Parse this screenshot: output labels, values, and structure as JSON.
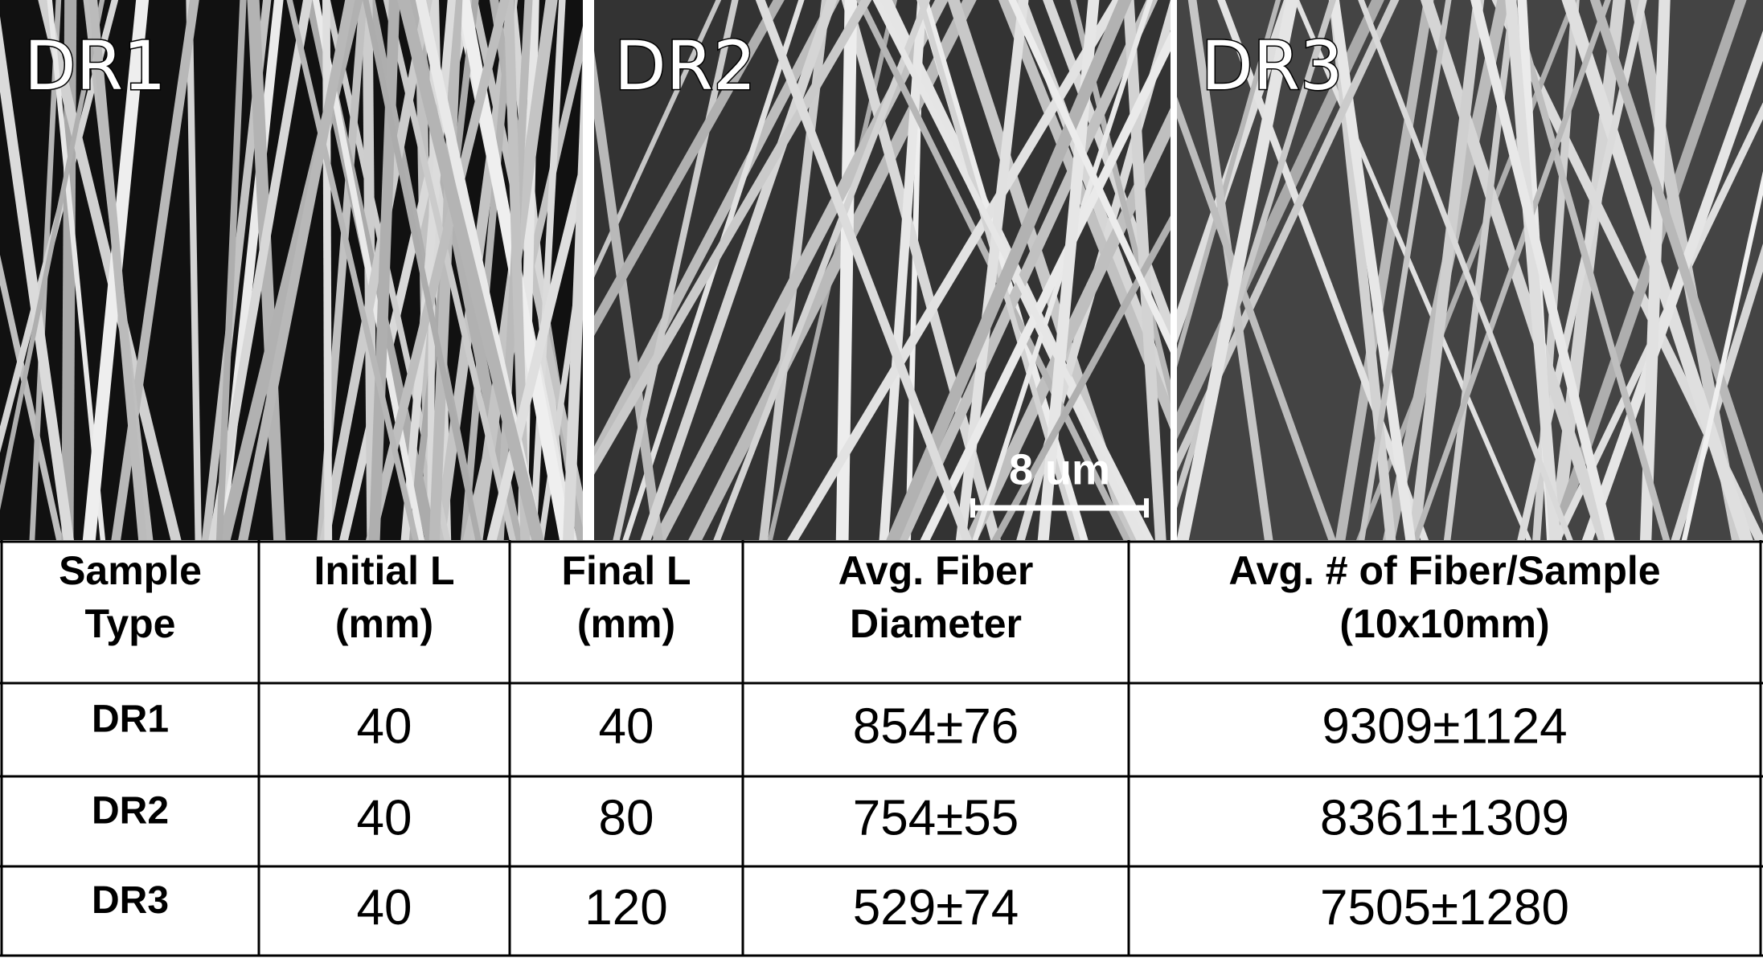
{
  "panels": [
    {
      "label": "DR1"
    },
    {
      "label": "DR2"
    },
    {
      "label": "DR3"
    }
  ],
  "scale_bar": {
    "label": "8 um"
  },
  "table": {
    "header": [
      [
        "Sample",
        "Type"
      ],
      [
        "Initial L",
        "(mm)"
      ],
      [
        "Final L",
        "(mm)"
      ],
      [
        "Avg. Fiber",
        "Diameter"
      ],
      [
        "Avg. # of Fiber/Sample",
        "(10x10mm)"
      ]
    ],
    "rows": [
      [
        "DR1",
        "40",
        "40",
        "854±76",
        "9309±1124"
      ],
      [
        "DR2",
        "40",
        "80",
        "754±55",
        "8361±1309"
      ],
      [
        "DR3",
        "40",
        "120",
        "529±74",
        "7505±1280"
      ]
    ]
  }
}
